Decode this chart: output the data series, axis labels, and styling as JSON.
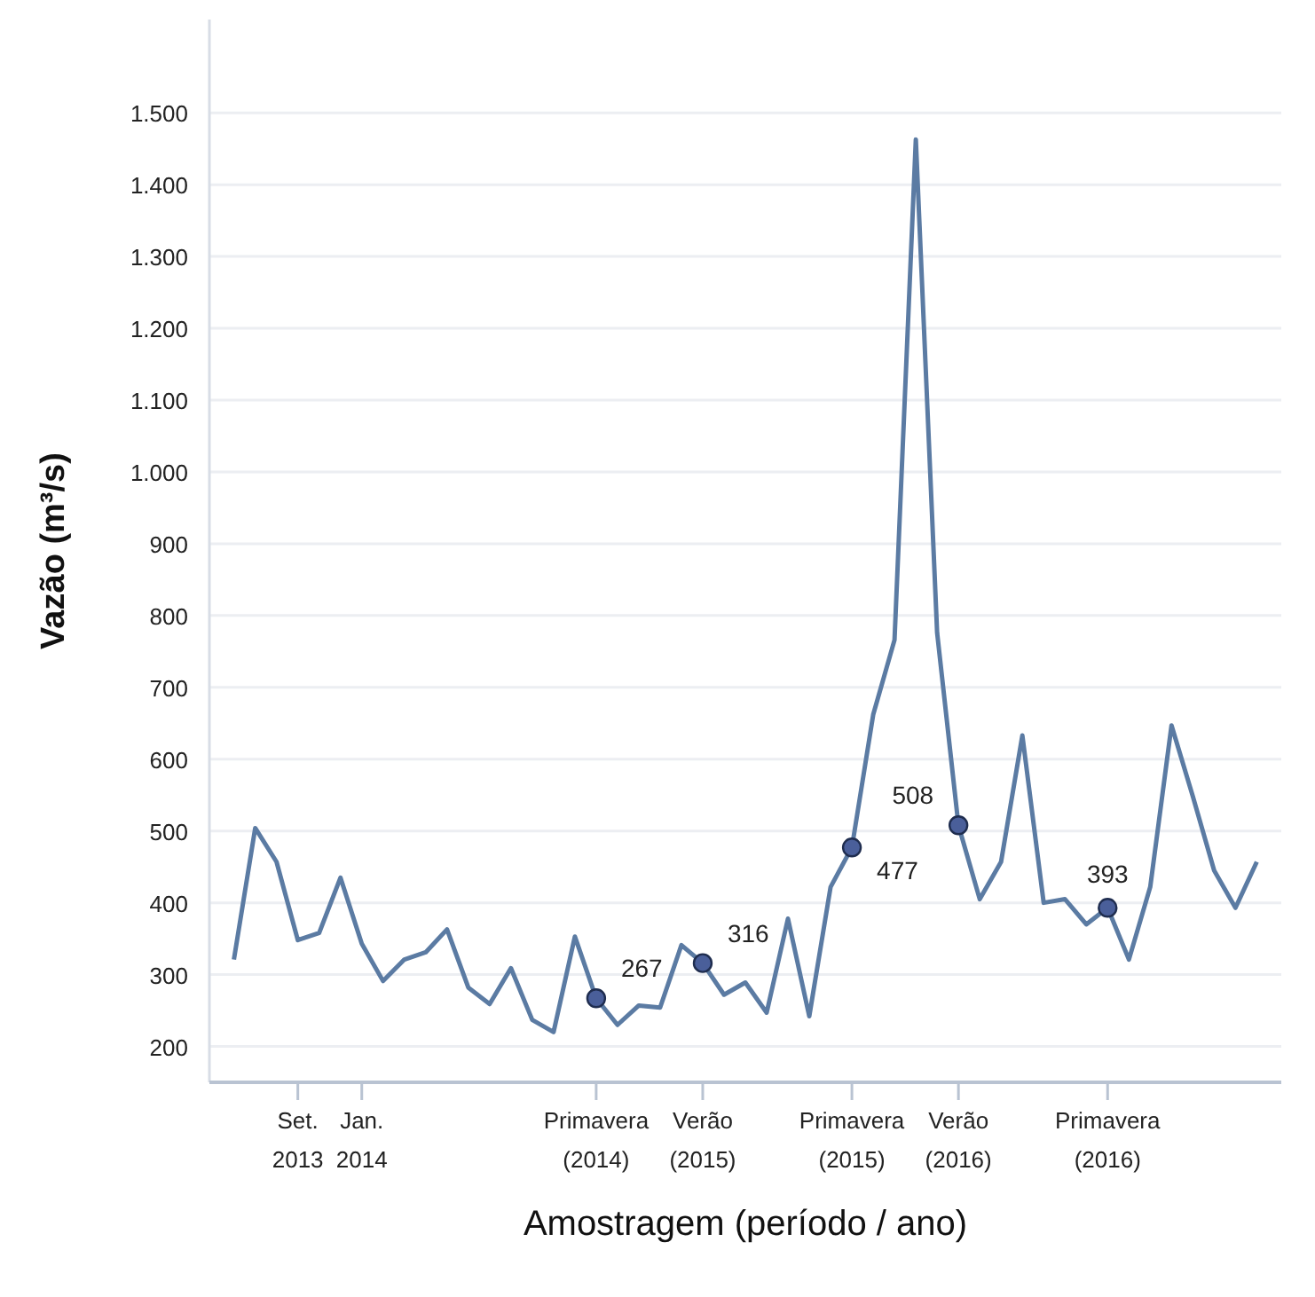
{
  "chart_data": {
    "type": "line",
    "xlabel": "Amostragem (período / ano)",
    "ylabel": "Vazão (m³/s)",
    "categories": [
      null,
      null,
      null,
      "Set. 2013",
      null,
      null,
      "Jan. 2014",
      null,
      null,
      null,
      null,
      null,
      null,
      null,
      null,
      null,
      null,
      "Primavera (2014)",
      null,
      null,
      null,
      null,
      "Verão (2015)",
      null,
      null,
      null,
      null,
      null,
      null,
      "Primavera (2015)",
      null,
      null,
      null,
      null,
      "Verão (2016)",
      null,
      null,
      null,
      null,
      null,
      null,
      "Primavera (2016)",
      null,
      null,
      null,
      null,
      null,
      null,
      null
    ],
    "series": [
      {
        "color": "#5b7ba3",
        "marker": "none",
        "values": [
          321,
          504,
          457,
          348,
          358,
          435,
          343,
          291,
          321,
          331,
          363,
          282,
          259,
          309,
          237,
          220,
          353,
          267,
          230,
          257,
          254,
          341,
          316,
          272,
          289,
          247,
          378,
          242,
          422,
          477,
          662,
          766,
          1463,
          776,
          508,
          405,
          457,
          633,
          400,
          405,
          370,
          393,
          321,
          422,
          647,
          548,
          445,
          393,
          457
        ]
      },
      {
        "type": "scatter",
        "color": "#4a5f9a",
        "marker": "circle",
        "values": [
          null,
          null,
          null,
          null,
          null,
          null,
          null,
          null,
          null,
          null,
          null,
          null,
          null,
          null,
          null,
          null,
          null,
          267,
          null,
          null,
          null,
          null,
          316,
          null,
          null,
          null,
          null,
          null,
          null,
          477,
          null,
          null,
          null,
          null,
          508,
          null,
          null,
          null,
          null,
          null,
          null,
          393,
          null,
          null,
          null,
          null,
          null,
          null,
          null
        ],
        "value_labels": [
          null,
          null,
          null,
          null,
          null,
          null,
          null,
          null,
          null,
          null,
          null,
          null,
          null,
          null,
          null,
          null,
          null,
          "267",
          null,
          null,
          null,
          null,
          "316",
          null,
          null,
          null,
          null,
          null,
          null,
          "477",
          null,
          null,
          null,
          null,
          "508",
          null,
          null,
          null,
          null,
          null,
          null,
          "393",
          null,
          null,
          null,
          null,
          null,
          null,
          null
        ]
      }
    ],
    "ylim": [
      150,
      1630
    ],
    "yticks": [
      {
        "value": 200,
        "label": "200"
      },
      {
        "value": 300,
        "label": "300"
      },
      {
        "value": 400,
        "label": "400"
      },
      {
        "value": 500,
        "label": "500"
      },
      {
        "value": 600,
        "label": "600"
      },
      {
        "value": 700,
        "label": "700"
      },
      {
        "value": 800,
        "label": "800"
      },
      {
        "value": 900,
        "label": "900"
      },
      {
        "value": 1000,
        "label": "1.000"
      },
      {
        "value": 1100,
        "label": "1.100"
      },
      {
        "value": 1200,
        "label": "1.200"
      },
      {
        "value": 1300,
        "label": "1.300"
      },
      {
        "value": 1400,
        "label": "1.400"
      },
      {
        "value": 1500,
        "label": "1.500"
      }
    ],
    "grid": "y"
  }
}
